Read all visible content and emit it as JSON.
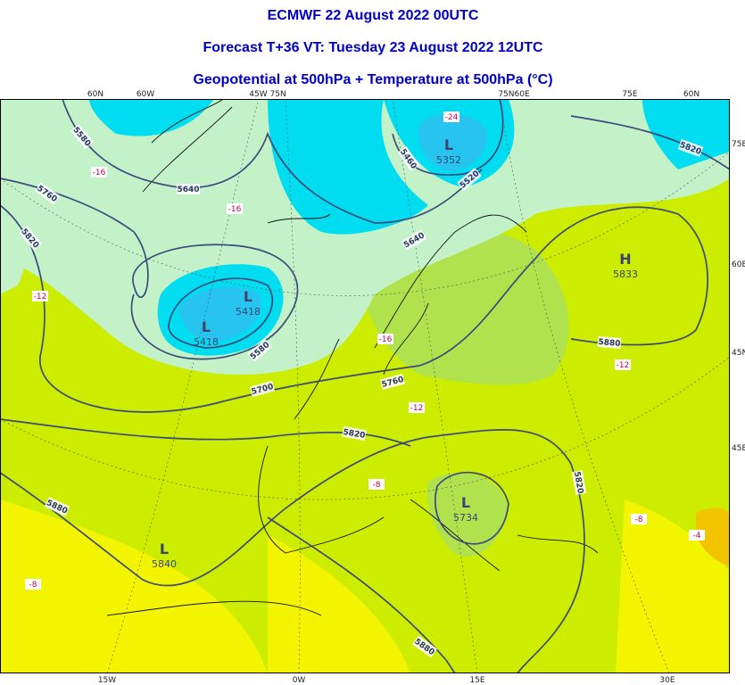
{
  "titles": [
    "ECMWF 22 August 2022 00UTC",
    "Forecast T+36 VT: Tuesday 23 August 2022 12UTC",
    "Geopotential at 500hPa + Temperature at 500hPa (°C)"
  ],
  "top_labels": [
    "60N",
    "60W",
    "45W 75N",
    "75N60E",
    "75E",
    "60N"
  ],
  "right_labels": [
    "75E",
    "60E",
    "45N",
    "45E"
  ],
  "bottom_labels": [
    "15W",
    "0W",
    "15E",
    "30E"
  ],
  "contour_labels": [
    5580,
    5760,
    5820,
    5640,
    5460,
    5520,
    5640,
    5820,
    5580,
    5700,
    5760,
    5820,
    5880,
    5820,
    5880,
    5880
  ],
  "centers": [
    {
      "symbol": "L",
      "value": 5352
    },
    {
      "symbol": "L",
      "value": 5418
    },
    {
      "symbol": "L",
      "value": 5418
    },
    {
      "symbol": "L",
      "value": 5840
    },
    {
      "symbol": "H",
      "value": 5833
    },
    {
      "symbol": "L",
      "value": 5734
    }
  ],
  "temperature_labels": [
    -24,
    -16,
    -16,
    -12,
    -16,
    -12,
    -12,
    -8,
    -8,
    -8,
    -4
  ]
}
